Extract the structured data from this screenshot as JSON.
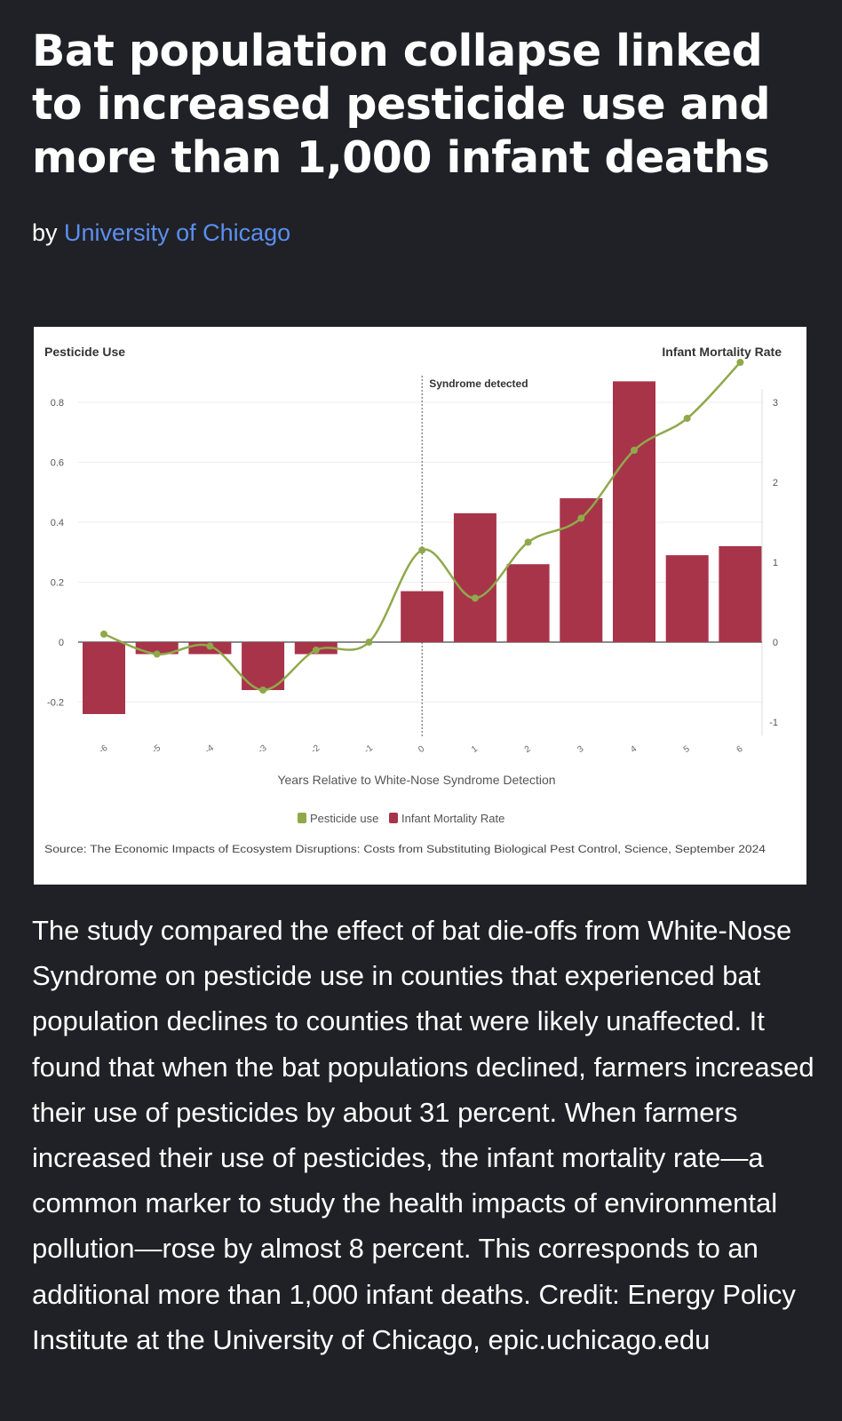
{
  "article": {
    "title": "Bat population collapse linked to increased pesticide use and more than 1,000 infant deaths",
    "by_prefix": "by",
    "author": "University of Chicago",
    "link_color": "#5b8ff0",
    "caption": "The study compared the effect of bat die-offs from White-Nose Syndrome on pesticide use in counties that experienced bat population declines to counties that were likely unaffected. It found that when the bat populations declined, farmers increased their use of pesticides by about 31 percent. When farmers increased their use of pesticides, the infant mortality rate—a common marker to study the health impacts of environmental pollution—rose by almost 8 percent. This corresponds to an additional more than 1,000 infant deaths. Credit: Energy Policy Institute at the University of Chicago, epic.uchicago.edu"
  },
  "chart_data": {
    "type": "bar",
    "left_axis_title": "Pesticide Use",
    "right_axis_title": "Infant Mortality Rate",
    "annotation": "Syndrome detected",
    "annotation_x": "0",
    "xlabel": "Years Relative to White-Nose Syndrome Detection",
    "categories": [
      "-6",
      "-5",
      "-4",
      "-3",
      "-2",
      "-1",
      "0",
      "1",
      "2",
      "3",
      "4",
      "5",
      "6"
    ],
    "category_tick_labels": [
      "-6",
      "-5",
      "-4",
      "-3",
      "-2",
      "-1",
      "0",
      "1",
      "2",
      "3",
      "4",
      "5",
      "6"
    ],
    "left_axis": {
      "range": [
        -0.3,
        0.9
      ],
      "ticks": [
        -0.2,
        0,
        0.2,
        0.4,
        0.6,
        0.8
      ],
      "tick_labels": [
        "-0.2",
        "0",
        "0.2",
        "0.4",
        "0.6",
        "0.8"
      ]
    },
    "right_axis": {
      "range": [
        -1,
        3.5
      ],
      "ticks": [
        -1,
        0,
        1,
        2,
        3
      ],
      "tick_labels": [
        "-1",
        "0",
        "1",
        "2",
        "3"
      ]
    },
    "series": [
      {
        "name": "Infant Mortality Rate",
        "type": "bar",
        "axis": "left",
        "color": "#a8344a",
        "values": [
          -0.24,
          -0.04,
          -0.04,
          -0.16,
          -0.04,
          null,
          0.17,
          0.43,
          0.26,
          0.48,
          0.87,
          0.29,
          0.32
        ]
      },
      {
        "name": "Pesticide use",
        "type": "line",
        "axis": "right",
        "color": "#8fa94a",
        "values": [
          0.1,
          -0.15,
          -0.05,
          -0.6,
          -0.1,
          0.0,
          1.15,
          0.55,
          1.25,
          1.55,
          2.4,
          2.8,
          3.5
        ]
      }
    ],
    "legend": [
      {
        "name": "Pesticide use",
        "color": "#8fa94a"
      },
      {
        "name": "Infant Mortality Rate",
        "color": "#a8344a"
      }
    ],
    "legend_position": "bottom",
    "source": "Source: The Economic Impacts of Ecosystem Disruptions: Costs from Substituting Biological Pest Control, Science, September 2024"
  }
}
